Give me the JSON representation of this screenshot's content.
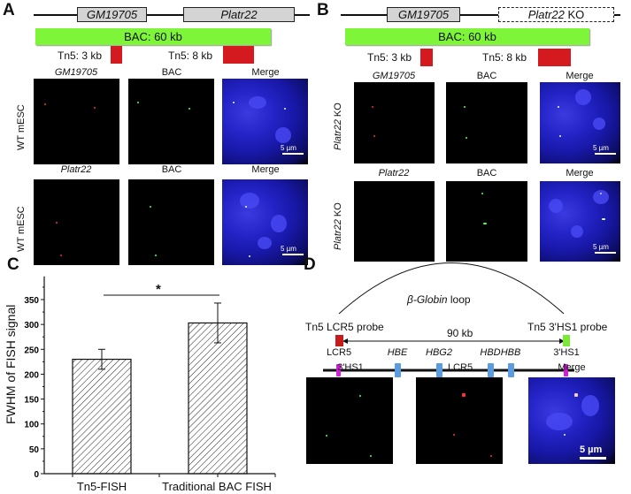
{
  "panel_a": {
    "label": "A",
    "gene1": "GM19705",
    "gene2": "Platr22",
    "bac": "BAC: 60 kb",
    "tn5_1": "Tn5: 3 kb",
    "tn5_2": "Tn5: 8 kb",
    "row1": {
      "side": "WT mESC",
      "cols": [
        "GM19705",
        "BAC",
        "Merge"
      ]
    },
    "row2": {
      "side": "WT mESC",
      "cols": [
        "Platr22",
        "BAC",
        "Merge"
      ]
    },
    "scale": "5 µm"
  },
  "panel_b": {
    "label": "B",
    "gene1": "GM19705",
    "gene2_italic": "Platr22",
    "gene2_suffix": " KO",
    "bac": "BAC: 60 kb",
    "tn5_1": "Tn5: 3 kb",
    "tn5_2": "Tn5: 8 kb",
    "row1": {
      "side_italic": "Platr22",
      "side_suffix": " KO",
      "cols": [
        "GM19705",
        "BAC",
        "Merge"
      ]
    },
    "row2": {
      "side_italic": "Platr22",
      "side_suffix": " KO",
      "cols": [
        "Platr22",
        "BAC",
        "Merge"
      ]
    },
    "scale": "5 µm"
  },
  "panel_c": {
    "label": "C",
    "significance": "*"
  },
  "chart_data": {
    "type": "bar",
    "categories": [
      "Tn5-FISH",
      "Traditional BAC FISH"
    ],
    "values": [
      230,
      303
    ],
    "errors": [
      20,
      40
    ],
    "xlabel": "",
    "ylabel": "FWHM of FISH signal",
    "ylim": [
      0,
      370
    ],
    "yticks": [
      0,
      50,
      100,
      150,
      200,
      250,
      300,
      350
    ],
    "grid": false,
    "pattern": "hatched"
  },
  "panel_d": {
    "label": "D",
    "loop_italic": "β-Globin",
    "loop_suffix": " loop",
    "probe_left": "Tn5 LCR5 probe",
    "probe_right": "Tn5 3'HS1 probe",
    "distance": "90 kb",
    "loci": [
      {
        "name": "LCR5",
        "italic": false,
        "color": "#d21ed8"
      },
      {
        "name": "HBE",
        "italic": true,
        "color": "#5b9be0"
      },
      {
        "name": "HBG2",
        "italic": true,
        "color": "#5b9be0"
      },
      {
        "name": "HBD",
        "italic": true,
        "color": "#5b9be0"
      },
      {
        "name": "HBB",
        "italic": true,
        "color": "#5b9be0"
      },
      {
        "name": "3'HS1",
        "italic": false,
        "color": "#d21ed8"
      }
    ],
    "cols": [
      "3'HS1",
      "LCR5",
      "Merge"
    ],
    "scale": "5 µm"
  }
}
